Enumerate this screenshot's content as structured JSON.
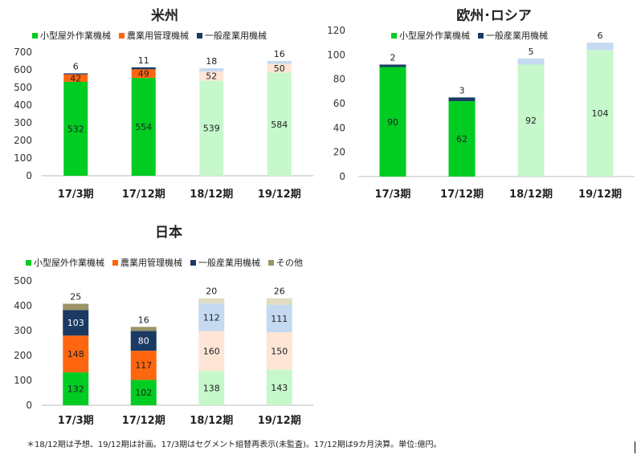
{
  "chart_data": [
    {
      "id": "us",
      "type": "bar",
      "stacked": true,
      "title": "米州",
      "categories": [
        "17/3期",
        "17/12期",
        "18/12期",
        "19/12期"
      ],
      "ylim": [
        0,
        700
      ],
      "yticks": [
        0,
        100,
        200,
        300,
        400,
        500,
        600,
        700
      ],
      "legend": [
        "小型屋外作業機械",
        "農業用管理機械",
        "一般産業用機械"
      ],
      "series": [
        {
          "name": "小型屋外作業機械",
          "values": [
            532,
            554,
            539,
            584
          ],
          "colors": [
            "#00cc22",
            "#00cc22",
            "#c6f8cc",
            "#c6f8cc"
          ],
          "labels": [
            "532",
            "554",
            "539",
            "584"
          ]
        },
        {
          "name": "農業用管理機械",
          "values": [
            42,
            49,
            52,
            50
          ],
          "colors": [
            "#ff6610",
            "#ff6610",
            "#fde6d6",
            "#fde6d6"
          ],
          "labels": [
            "42",
            "49",
            "52",
            "50"
          ]
        },
        {
          "name": "一般産業用機械",
          "values": [
            6,
            11,
            18,
            16
          ],
          "colors": [
            "#1b3a63",
            "#1b3a63",
            "#c5daf1",
            "#c5daf1"
          ],
          "labels": [
            "6",
            "11",
            "18",
            "16"
          ],
          "label_pos": "top"
        }
      ]
    },
    {
      "id": "eu",
      "type": "bar",
      "stacked": true,
      "title": "欧州･ロシア",
      "categories": [
        "17/3期",
        "17/12期",
        "18/12期",
        "19/12期"
      ],
      "ylim": [
        0,
        120
      ],
      "yticks": [
        0,
        20,
        40,
        60,
        80,
        100,
        120
      ],
      "legend": [
        "小型屋外作業機械",
        "一般産業用機械"
      ],
      "series": [
        {
          "name": "小型屋外作業機械",
          "values": [
            90,
            62,
            92,
            104
          ],
          "colors": [
            "#00cc22",
            "#00cc22",
            "#c6f8cc",
            "#c6f8cc"
          ],
          "labels": [
            "90",
            "62",
            "92",
            "104"
          ]
        },
        {
          "name": "一般産業用機械",
          "values": [
            2,
            3,
            5,
            6
          ],
          "colors": [
            "#1b3a63",
            "#1b3a63",
            "#c5daf1",
            "#c5daf1"
          ],
          "labels": [
            "2",
            "3",
            "5",
            "6"
          ],
          "label_pos": "top"
        }
      ]
    },
    {
      "id": "jp",
      "type": "bar",
      "stacked": true,
      "title": "日本",
      "categories": [
        "17/3期",
        "17/12期",
        "18/12期",
        "19/12期"
      ],
      "ylim": [
        0,
        500
      ],
      "yticks": [
        0,
        100,
        200,
        300,
        400,
        500
      ],
      "legend": [
        "小型屋外作業機械",
        "農業用管理機械",
        "一般産業用機械",
        "その他"
      ],
      "series": [
        {
          "name": "小型屋外作業機械",
          "values": [
            132,
            102,
            138,
            143
          ],
          "colors": [
            "#00cc22",
            "#00cc22",
            "#c6f8cc",
            "#c6f8cc"
          ],
          "labels": [
            "132",
            "102",
            "138",
            "143"
          ]
        },
        {
          "name": "農業用管理機械",
          "values": [
            148,
            117,
            160,
            150
          ],
          "colors": [
            "#ff6610",
            "#ff6610",
            "#fde6d6",
            "#fde6d6"
          ],
          "labels": [
            "148",
            "117",
            "160",
            "150"
          ]
        },
        {
          "name": "一般産業用機械",
          "values": [
            103,
            80,
            112,
            111
          ],
          "colors": [
            "#1b3a63",
            "#1b3a63",
            "#c5daf1",
            "#c5daf1"
          ],
          "labels": [
            "103",
            "80",
            "112",
            "111"
          ],
          "label_light": [
            true,
            true,
            false,
            false
          ]
        },
        {
          "name": "その他",
          "values": [
            25,
            16,
            20,
            26
          ],
          "colors": [
            "#9c9465",
            "#9c9465",
            "#e0dcc2",
            "#e0dcc2"
          ],
          "labels": [
            "25",
            "16",
            "20",
            "26"
          ],
          "label_pos": "top"
        }
      ]
    }
  ],
  "legend_colors": {
    "小型屋外作業機械": "#00cc22",
    "農業用管理機械": "#ff6610",
    "一般産業用機械": "#1b3a63",
    "その他": "#9c9465"
  },
  "footnote": "＊18/12期は予想、19/12期は計画。17/3期はセグメント組替再表示(未監査)。17/12期は9カ月決算。単位:億円。"
}
